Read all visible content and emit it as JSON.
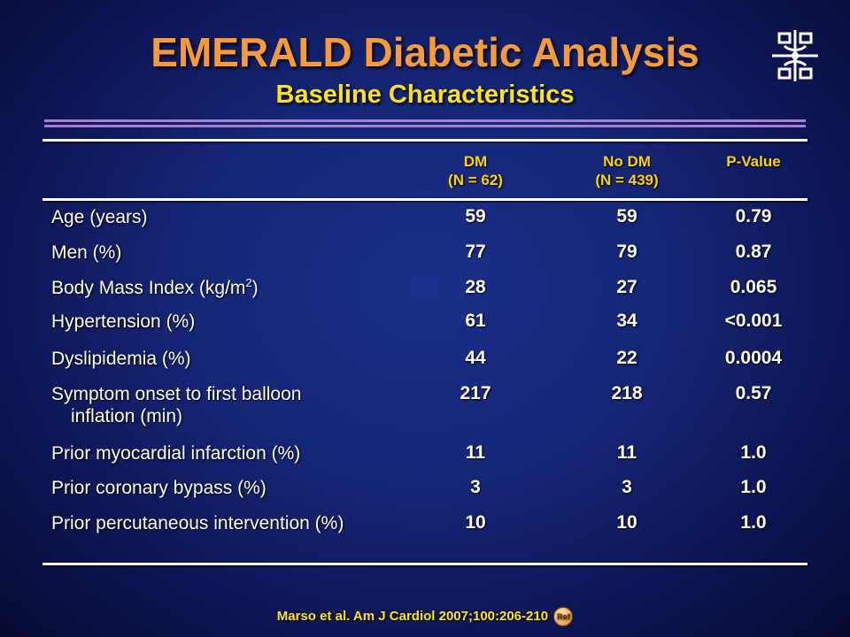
{
  "slide": {
    "title": "EMERALD Diabetic Analysis",
    "subtitle": "Baseline Characteristics"
  },
  "table": {
    "columns": [
      {
        "line1": "DM",
        "line2": "(N = 62)"
      },
      {
        "line1": "No DM",
        "line2": "(N = 439)"
      },
      {
        "line1": "P-Value",
        "line2": ""
      }
    ],
    "rows": [
      {
        "label": "Age (years)",
        "dm": "59",
        "nodm": "59",
        "p": "0.79"
      },
      {
        "label": "Men (%)",
        "dm": "77",
        "nodm": "79",
        "p": "0.87"
      },
      {
        "label_pre": "Body Mass Index (kg/m",
        "label_sup": "2",
        "label_post": ")",
        "dm": "28",
        "nodm": "27",
        "p": "0.065"
      },
      {
        "label": "Hypertension (%)",
        "dm": "61",
        "nodm": "34",
        "p": "<0.001"
      },
      {
        "label": "Dyslipidemia (%)",
        "dm": "44",
        "nodm": "22",
        "p": "0.0004"
      },
      {
        "label": "Symptom onset to first balloon",
        "label2": "inflation (min)",
        "dm": "217",
        "nodm": "218",
        "p": "0.57"
      },
      {
        "label": "Prior myocardial infarction (%)",
        "dm": "11",
        "nodm": "11",
        "p": "1.0"
      },
      {
        "label": "Prior coronary bypass (%)",
        "dm": "3",
        "nodm": "3",
        "p": "1.0"
      },
      {
        "label": "Prior percutaneous intervention (%)",
        "dm": "10",
        "nodm": "10",
        "p": "1.0"
      }
    ]
  },
  "citation": {
    "text": "Marso et al. Am J Cardiol 2007;100:206-210",
    "ref_label": "Ref"
  },
  "colors": {
    "title": "#f79a3a",
    "subtitle": "#ffe21a",
    "header": "#ffd200",
    "rule": "#a67fcf"
  }
}
